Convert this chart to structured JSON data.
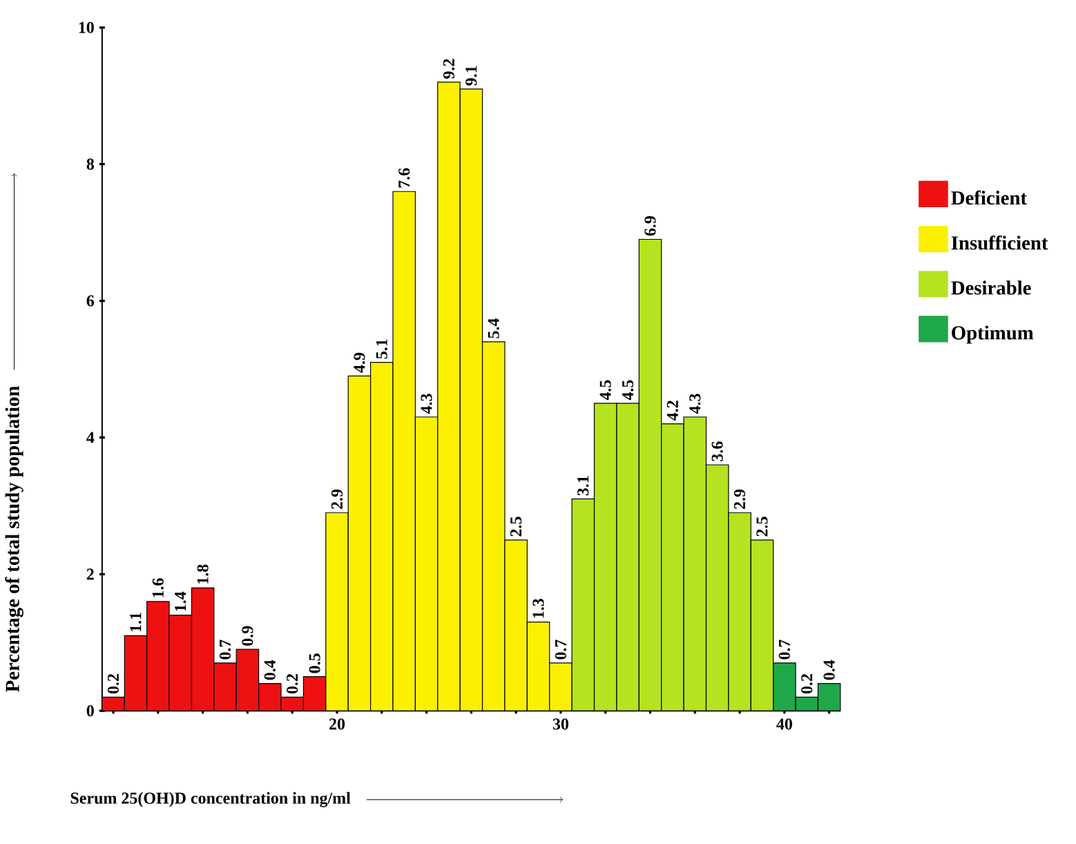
{
  "chart_data": {
    "type": "bar",
    "xlabel": "Serum 25(OH)D concentration in ng/ml",
    "ylabel": "Percentage of total study population",
    "series": [
      {
        "name": "Deficient",
        "color": "#ee1111",
        "x": [
          10,
          11,
          12,
          13,
          14,
          15,
          16,
          17,
          18,
          19
        ],
        "values": [
          0.2,
          1.1,
          1.6,
          1.4,
          1.8,
          0.7,
          0.9,
          0.4,
          0.2,
          0.5
        ]
      },
      {
        "name": "Insufficient",
        "color": "#fbf000",
        "x": [
          20,
          21,
          22,
          23,
          24,
          25,
          26,
          27,
          28,
          29,
          30
        ],
        "values": [
          2.9,
          4.9,
          5.1,
          7.6,
          4.3,
          9.2,
          9.1,
          5.4,
          2.5,
          1.3,
          0.7
        ]
      },
      {
        "name": "Desirable",
        "color": "#b5e31f",
        "x": [
          31,
          32,
          33,
          34,
          35,
          36,
          37,
          38,
          39
        ],
        "values": [
          3.1,
          4.5,
          4.5,
          6.9,
          4.2,
          4.3,
          3.6,
          2.9,
          2.5
        ]
      },
      {
        "name": "Optimum",
        "color": "#1fa84a",
        "x": [
          40,
          41,
          42
        ],
        "values": [
          0.7,
          0.2,
          0.4
        ]
      }
    ],
    "xlim": [
      9.5,
      42.5
    ],
    "xticks": [
      {
        "value": 10,
        "label": null
      },
      {
        "value": 12,
        "label": null
      },
      {
        "value": 14,
        "label": null
      },
      {
        "value": 16,
        "label": null
      },
      {
        "value": 18,
        "label": null
      },
      20,
      {
        "value": 22,
        "label": null
      },
      {
        "value": 24,
        "label": null
      },
      {
        "value": 26,
        "label": null
      },
      {
        "value": 28,
        "label": null
      },
      30,
      {
        "value": 32,
        "label": null
      },
      {
        "value": 34,
        "label": null
      },
      {
        "value": 36,
        "label": null
      },
      {
        "value": 38,
        "label": null
      },
      40,
      {
        "value": 42,
        "label": null
      }
    ],
    "ylim": [
      0,
      10
    ],
    "yticks": [
      0,
      2,
      4,
      6,
      8,
      10
    ],
    "data_labels": true,
    "legend": "right",
    "grid": false
  }
}
